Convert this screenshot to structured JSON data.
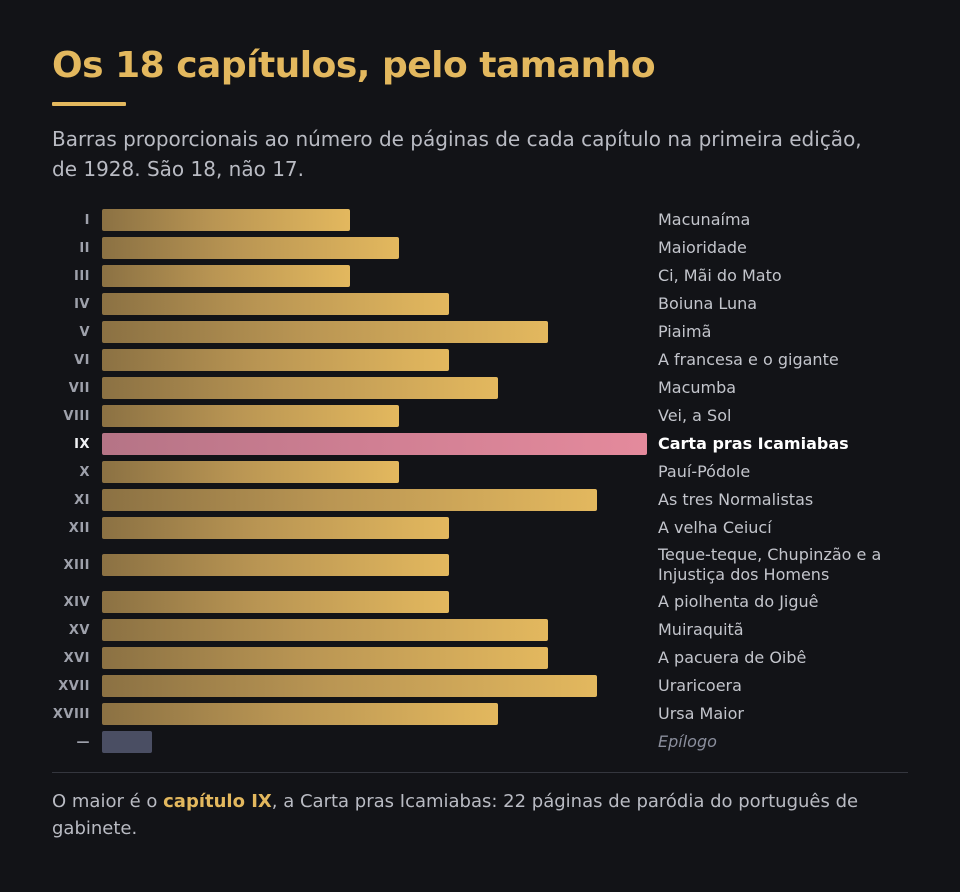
{
  "title": "Os 18 capítulos, pelo tamanho",
  "subtitle": "Barras proporcionais ao número de páginas de cada capítulo na primeira edição, de 1928. São 18, não 17.",
  "colors": {
    "accent": "#e3b85e",
    "highlight": "#e48a9c",
    "epilogue": "#4a4e63",
    "background": "#121317"
  },
  "chart_data": {
    "type": "bar",
    "orientation": "horizontal",
    "grid": false,
    "categories": [
      "I",
      "II",
      "III",
      "IV",
      "V",
      "VI",
      "VII",
      "VIII",
      "IX",
      "X",
      "XI",
      "XII",
      "XIII",
      "XIV",
      "XV",
      "XVI",
      "XVII",
      "XVIII",
      "—"
    ],
    "labels": [
      "Macunaíma",
      "Maioridade",
      "Ci, Mãi do Mato",
      "Boiuna Luna",
      "Piaimã",
      "A francesa e o gigante",
      "Macumba",
      "Vei, a Sol",
      "Carta pras Icamiabas",
      "Pauí-Pódole",
      "As tres Normalistas",
      "A velha Ceiucí",
      "Teque-teque, Chupinzão e a Injustiça dos Homens",
      "A piolhenta do Jiguê",
      "Muiraquitã",
      "A pacuera de Oibê",
      "Uraricoera",
      "Ursa Maior",
      "Epílogo"
    ],
    "values": [
      10,
      12,
      10,
      14,
      18,
      14,
      16,
      12,
      22,
      12,
      20,
      14,
      14,
      14,
      18,
      18,
      20,
      16,
      2
    ],
    "xlim": [
      0,
      22
    ],
    "highlight": "IX"
  },
  "footnote": {
    "pre": "O maior é o ",
    "em": "capítulo IX",
    "post": ", a Carta pras Icamiabas: 22 páginas de paródia do português de gabinete."
  }
}
